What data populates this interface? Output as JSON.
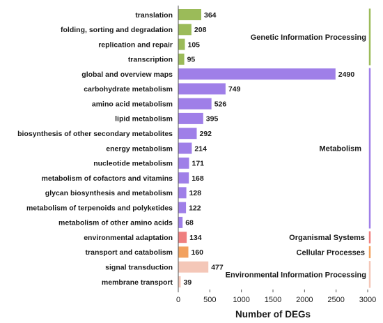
{
  "chart_data": {
    "type": "bar",
    "orientation": "horizontal",
    "xlabel": "Number of DEGs",
    "xlim": [
      0,
      3000
    ],
    "xticks": [
      0,
      500,
      1000,
      1500,
      2000,
      2500,
      3000
    ],
    "categories": [
      "translation",
      "folding, sorting and degradation",
      "replication and repair",
      "transcription",
      "global and overview maps",
      "carbohydrate metabolism",
      "amino acid metabolism",
      "lipid metabolism",
      "biosynthesis of other secondary metabolites",
      "energy metabolism",
      "nucleotide metabolism",
      "metabolism of cofactors and vitamins",
      "glycan biosynthesis and metabolism",
      "metabolism of terpenoids and polyketides",
      "metabolism of other amino acids",
      "environmental adaptation",
      "transport and catabolism",
      "signal transduction",
      "membrane transport"
    ],
    "values": [
      364,
      208,
      105,
      95,
      2490,
      749,
      526,
      395,
      292,
      214,
      171,
      168,
      128,
      122,
      68,
      134,
      160,
      477,
      39
    ],
    "groups": [
      {
        "name": "Genetic Information Processing",
        "start": 0,
        "end": 3,
        "color": "#9bbb59"
      },
      {
        "name": "Metabolism",
        "start": 4,
        "end": 14,
        "color": "#9f7fe8"
      },
      {
        "name": "Organismal Systems",
        "start": 15,
        "end": 15,
        "color": "#ef7f7f"
      },
      {
        "name": "Cellular Processes",
        "start": 16,
        "end": 16,
        "color": "#f2a15f"
      },
      {
        "name": "Environmental Information Processing",
        "start": 17,
        "end": 18,
        "color": "#f4c7b8"
      }
    ]
  }
}
